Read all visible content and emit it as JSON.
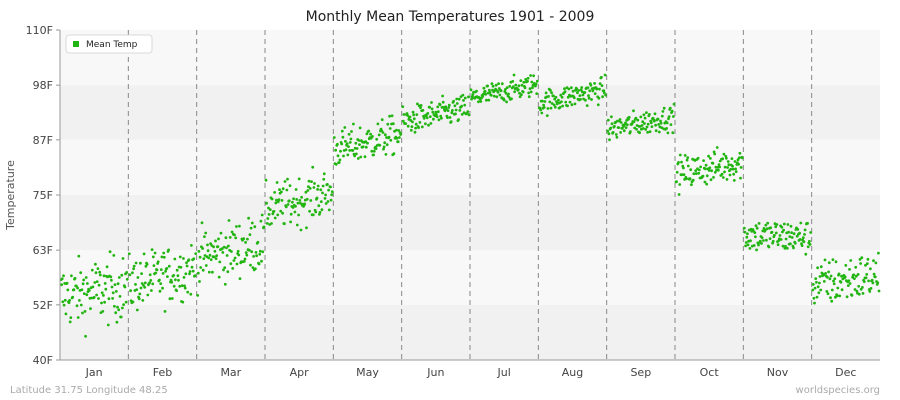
{
  "chart_data": {
    "type": "scatter",
    "title": "Monthly Mean Temperatures 1901 - 2009",
    "xlabel": "",
    "ylabel": "Temperature",
    "ylim": [
      40,
      110
    ],
    "y_ticks": [
      "40F",
      "52F",
      "63F",
      "75F",
      "87F",
      "98F",
      "110F"
    ],
    "y_tick_values": [
      40,
      51.7,
      63.3,
      75,
      86.7,
      98.3,
      110
    ],
    "categories": [
      "Jan",
      "Feb",
      "Mar",
      "Apr",
      "May",
      "Jun",
      "Jul",
      "Aug",
      "Sep",
      "Oct",
      "Nov",
      "Dec"
    ],
    "years": [
      1901,
      2009
    ],
    "grid": true,
    "legend_position": "top-left",
    "series": [
      {
        "name": "Mean Temp",
        "color": "#22b512",
        "monthly_start": [
          53.5,
          56.0,
          61.5,
          72.0,
          84.5,
          90.5,
          95.5,
          94.5,
          89.0,
          79.5,
          66.5,
          56.0
        ],
        "monthly_end": [
          55.5,
          59.5,
          65.0,
          75.5,
          88.0,
          93.5,
          98.5,
          97.5,
          91.5,
          82.0,
          66.0,
          58.0
        ],
        "spread": [
          3.5,
          3.0,
          3.0,
          2.5,
          2.0,
          1.5,
          1.2,
          1.3,
          1.3,
          1.8,
          1.8,
          2.5
        ]
      }
    ]
  },
  "footer": {
    "location": "Latitude 31.75 Longitude 48.25",
    "source": "worldspecies.org"
  },
  "colors": {
    "band_light": "#f8f8f8",
    "band_dark": "#f1f1f1",
    "divider": "#888888"
  }
}
